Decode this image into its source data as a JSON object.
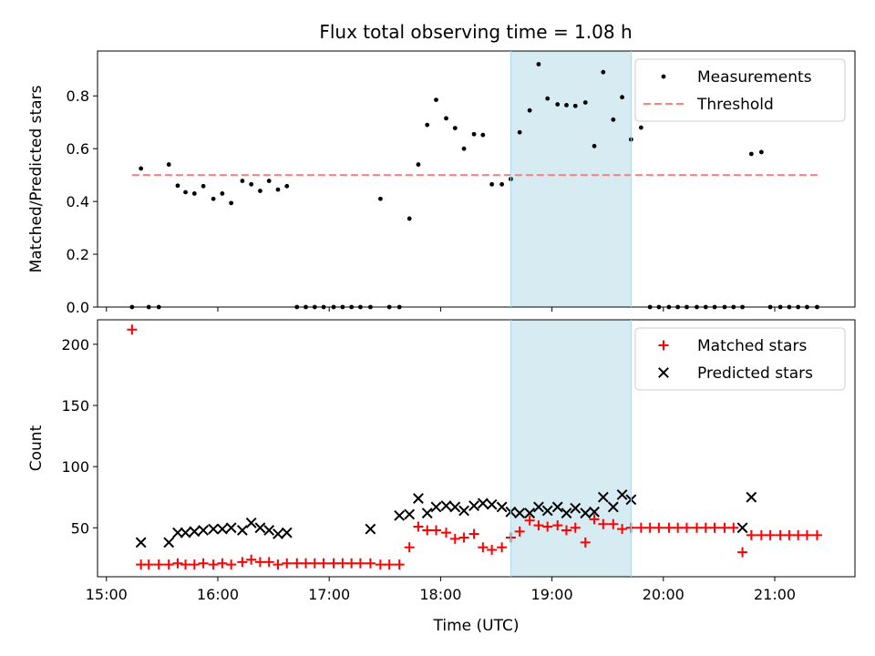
{
  "title": "Flux total observing time = 1.08 h",
  "colors": {
    "measurement": "#000000",
    "threshold": "#ff7f7f",
    "matched": "#ff0000",
    "predicted": "#000000",
    "highlight": "#add8e6"
  },
  "chart_data": [
    {
      "type": "scatter",
      "ylabel": "Matched/Predicted stars",
      "xlim": [
        14.92,
        21.72
      ],
      "ylim": [
        0,
        0.97
      ],
      "yticks": [
        0.0,
        0.2,
        0.4,
        0.6,
        0.8
      ],
      "ytick_labels": [
        "0.0",
        "0.2",
        "0.4",
        "0.6",
        "0.8"
      ],
      "highlight": {
        "start": 18.63,
        "end": 19.71
      },
      "legend": {
        "position": "top-right",
        "entries": [
          "Measurements",
          "Threshold"
        ]
      },
      "threshold": {
        "name": "Threshold",
        "value": 0.5,
        "x_range": [
          15.23,
          21.39
        ]
      },
      "series": [
        {
          "name": "Measurements",
          "x": [
            15.23,
            15.31,
            15.38,
            15.47,
            15.56,
            15.64,
            15.71,
            15.79,
            15.87,
            15.96,
            16.04,
            16.12,
            16.22,
            16.3,
            16.38,
            16.46,
            16.54,
            16.62,
            16.71,
            16.79,
            16.87,
            16.95,
            17.04,
            17.12,
            17.2,
            17.28,
            17.37,
            17.46,
            17.54,
            17.63,
            17.72,
            17.8,
            17.88,
            17.96,
            18.05,
            18.13,
            18.21,
            18.3,
            18.38,
            18.46,
            18.55,
            18.63,
            18.71,
            18.8,
            18.88,
            18.96,
            19.05,
            19.13,
            19.21,
            19.3,
            19.38,
            19.46,
            19.55,
            19.63,
            19.71,
            19.8,
            19.88,
            19.96,
            20.05,
            20.13,
            20.21,
            20.3,
            20.38,
            20.46,
            20.55,
            20.63,
            20.71,
            20.79,
            20.88,
            20.96,
            21.05,
            21.13,
            21.21,
            21.29,
            21.38
          ],
          "y": [
            0.0,
            0.525,
            0.0,
            0.0,
            0.54,
            0.46,
            0.435,
            0.43,
            0.458,
            0.41,
            0.43,
            0.394,
            0.478,
            0.465,
            0.44,
            0.478,
            0.445,
            0.458,
            0.0,
            0.0,
            0.0,
            0.0,
            0.0,
            0.0,
            0.0,
            0.0,
            0.0,
            0.41,
            0.0,
            0.0,
            0.335,
            0.54,
            0.69,
            0.785,
            0.715,
            0.678,
            0.6,
            0.655,
            0.652,
            0.465,
            0.465,
            0.485,
            0.662,
            0.745,
            0.92,
            0.79,
            0.768,
            0.765,
            0.762,
            0.775,
            0.61,
            0.89,
            0.71,
            0.795,
            0.635,
            0.68,
            0.0,
            0.0,
            0.0,
            0.0,
            0.0,
            0.0,
            0.0,
            0.0,
            0.0,
            0.0,
            0.0,
            0.58,
            0.587,
            0.0,
            0.0,
            0.0,
            0.0,
            0.0,
            0.0
          ]
        }
      ]
    },
    {
      "type": "scatter",
      "xlabel": "Time (UTC)",
      "ylabel": "Count",
      "xlim": [
        14.92,
        21.72
      ],
      "ylim": [
        10,
        220
      ],
      "xticks": [
        15,
        16,
        17,
        18,
        19,
        20,
        21
      ],
      "xtick_labels": [
        "15:00",
        "16:00",
        "17:00",
        "18:00",
        "19:00",
        "20:00",
        "21:00"
      ],
      "yticks": [
        50,
        100,
        150,
        200
      ],
      "ytick_labels": [
        "50",
        "100",
        "150",
        "200"
      ],
      "highlight": {
        "start": 18.63,
        "end": 19.71
      },
      "legend": {
        "position": "top-right",
        "entries": [
          "Matched stars",
          "Predicted stars"
        ]
      },
      "series": [
        {
          "name": "Matched stars",
          "x": [
            15.23,
            15.31,
            15.38,
            15.47,
            15.56,
            15.64,
            15.71,
            15.79,
            15.87,
            15.96,
            16.04,
            16.12,
            16.22,
            16.3,
            16.38,
            16.46,
            16.54,
            16.62,
            16.71,
            16.79,
            16.87,
            16.95,
            17.04,
            17.12,
            17.2,
            17.28,
            17.37,
            17.46,
            17.54,
            17.63,
            17.72,
            17.8,
            17.88,
            17.96,
            18.05,
            18.13,
            18.21,
            18.3,
            18.38,
            18.46,
            18.55,
            18.63,
            18.71,
            18.8,
            18.88,
            18.96,
            19.05,
            19.13,
            19.21,
            19.3,
            19.38,
            19.46,
            19.55,
            19.63,
            19.71,
            19.8,
            19.88,
            19.96,
            20.05,
            20.13,
            20.21,
            20.3,
            20.38,
            20.46,
            20.55,
            20.63,
            20.71,
            20.79,
            20.88,
            20.96,
            21.05,
            21.13,
            21.21,
            21.29,
            21.38
          ],
          "y": [
            212,
            20,
            20,
            20,
            20,
            21,
            20,
            20,
            21,
            20,
            21,
            20,
            22,
            24,
            22,
            22,
            20,
            21,
            21,
            21,
            21,
            21,
            21,
            21,
            21,
            21,
            21,
            20,
            20,
            20,
            34,
            51,
            48,
            48,
            46,
            41,
            42,
            45,
            34,
            32,
            34,
            42,
            47,
            56,
            52,
            51,
            52,
            48,
            50,
            38,
            57,
            53,
            53,
            49,
            50,
            50,
            50,
            50,
            50,
            50,
            50,
            50,
            50,
            50,
            50,
            50,
            30,
            44,
            44,
            44,
            44,
            44,
            44,
            44,
            44
          ]
        },
        {
          "name": "Predicted stars",
          "x": [
            15.31,
            15.56,
            15.64,
            15.71,
            15.79,
            15.87,
            15.96,
            16.04,
            16.12,
            16.22,
            16.3,
            16.38,
            16.46,
            16.54,
            16.62,
            17.37,
            17.63,
            17.72,
            17.8,
            17.88,
            17.96,
            18.05,
            18.13,
            18.21,
            18.3,
            18.38,
            18.46,
            18.55,
            18.63,
            18.71,
            18.8,
            18.88,
            18.96,
            19.05,
            19.13,
            19.21,
            19.3,
            19.38,
            19.46,
            19.55,
            19.63,
            19.71,
            20.71,
            20.79
          ],
          "y": [
            38,
            38,
            46,
            46,
            47,
            48,
            49,
            49,
            50,
            48,
            54,
            50,
            48,
            45,
            46,
            49,
            60,
            61,
            74,
            62,
            67,
            68,
            67,
            64,
            68,
            70,
            69,
            67,
            63,
            62,
            62,
            67,
            64,
            67,
            62,
            66,
            62,
            63,
            75,
            67,
            77,
            73,
            50,
            75
          ]
        }
      ]
    }
  ]
}
